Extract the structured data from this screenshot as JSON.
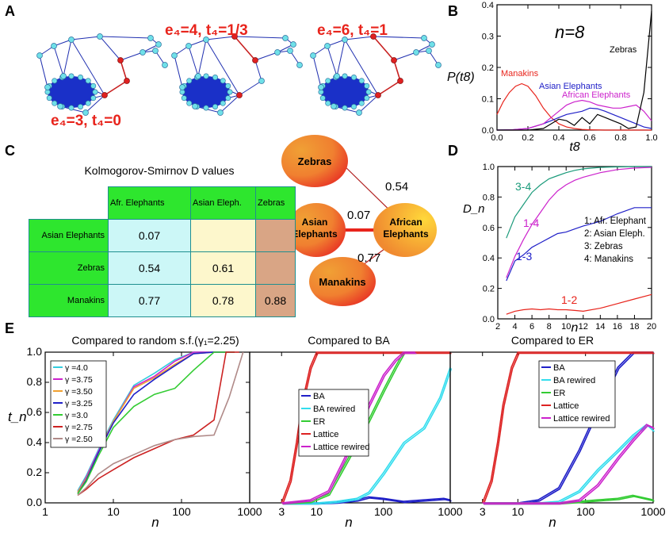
{
  "panel_labels": {
    "a": "A",
    "b": "B",
    "c": "C",
    "d": "D",
    "e": "E"
  },
  "panel_a": {
    "label_1": "e₄=3,  t₄=0",
    "label_2": "e₄=4,  t₄=1/3",
    "label_3": "e₄=6,  t₄=1"
  },
  "panel_c": {
    "title": "Kolmogorov-Smirnov D values",
    "columns": [
      "Afr. Elephants",
      "Asian Eleph.",
      "Zebras"
    ],
    "rows": [
      {
        "name": "Asian Elephants",
        "values": [
          "0.07",
          "",
          ""
        ]
      },
      {
        "name": "Zebras",
        "values": [
          "0.54",
          "0.61",
          ""
        ]
      },
      {
        "name": "Manakins",
        "values": [
          "0.77",
          "0.78",
          "0.88"
        ]
      }
    ],
    "cell_colors": {
      "col1": "#ccf7f7",
      "col2": "#fdf7cc",
      "col3": "#d9a585"
    },
    "graph": {
      "nodes": [
        "Zebras",
        "Asian Elephants",
        "African Elephants",
        "Manakins"
      ],
      "edges": [
        {
          "from": "Zebras",
          "to": "African Elephants",
          "label": "0.54"
        },
        {
          "from": "Asian Elephants",
          "to": "African Elephants",
          "label": "0.07"
        },
        {
          "from": "Manakins",
          "to": "African Elephants",
          "label": "0.77"
        }
      ]
    }
  },
  "chart_data": [
    {
      "id": "B",
      "type": "line",
      "title": "n=8",
      "xlabel": "t8",
      "ylabel": "P(t8)",
      "xlim": [
        0,
        1
      ],
      "ylim": [
        0,
        0.4
      ],
      "xticks": [
        "0.0",
        "0.2",
        "0.4",
        "0.6",
        "0.8",
        "1.0"
      ],
      "yticks": [
        "0.0",
        "0.1",
        "0.2",
        "0.3",
        "0.4"
      ],
      "series": [
        {
          "name": "Manakins",
          "color": "#e8241c",
          "x": [
            0,
            0.04,
            0.08,
            0.12,
            0.16,
            0.2,
            0.25,
            0.3,
            0.35,
            0.4,
            0.45,
            0.5,
            0.55,
            0.6,
            0.7,
            0.8,
            1.0
          ],
          "y": [
            0.05,
            0.09,
            0.12,
            0.14,
            0.148,
            0.14,
            0.11,
            0.07,
            0.04,
            0.02,
            0.01,
            0.005,
            0.002,
            0.001,
            0,
            0,
            0
          ]
        },
        {
          "name": "Asian Elephants",
          "color": "#2020c8",
          "x": [
            0,
            0.1,
            0.2,
            0.3,
            0.35,
            0.4,
            0.45,
            0.5,
            0.55,
            0.6,
            0.65,
            0.7,
            0.75,
            0.8,
            0.85,
            0.9,
            0.95,
            1.0
          ],
          "y": [
            0,
            0.001,
            0.005,
            0.02,
            0.03,
            0.04,
            0.05,
            0.055,
            0.06,
            0.07,
            0.068,
            0.06,
            0.05,
            0.04,
            0.03,
            0.02,
            0.01,
            0.005
          ]
        },
        {
          "name": "African Elephants",
          "color": "#cc22cc",
          "x": [
            0,
            0.1,
            0.2,
            0.3,
            0.35,
            0.4,
            0.45,
            0.5,
            0.55,
            0.6,
            0.65,
            0.7,
            0.75,
            0.8,
            0.85,
            0.9,
            0.95,
            1.0
          ],
          "y": [
            0,
            0.001,
            0.005,
            0.02,
            0.04,
            0.06,
            0.08,
            0.09,
            0.095,
            0.09,
            0.08,
            0.075,
            0.07,
            0.07,
            0.075,
            0.08,
            0.06,
            0.03
          ]
        },
        {
          "name": "Zebras",
          "color": "#000000",
          "x": [
            0,
            0.2,
            0.3,
            0.35,
            0.4,
            0.45,
            0.5,
            0.55,
            0.6,
            0.65,
            0.7,
            0.75,
            0.8,
            0.85,
            0.9,
            0.95,
            1.0
          ],
          "y": [
            0,
            0,
            0.005,
            0.02,
            0.035,
            0.03,
            0.015,
            0.04,
            0.02,
            0.05,
            0.04,
            0.03,
            0.02,
            0.005,
            0.01,
            0.12,
            0.38
          ]
        }
      ]
    },
    {
      "id": "D",
      "type": "line",
      "xlabel": "n",
      "ylabel": "D_n",
      "xlim": [
        2,
        20
      ],
      "ylim": [
        0,
        1
      ],
      "xticks": [
        "2",
        "4",
        "6",
        "8",
        "10",
        "12",
        "14",
        "16",
        "18",
        "20"
      ],
      "yticks": [
        "0.0",
        "0.2",
        "0.4",
        "0.6",
        "0.8",
        "1.0"
      ],
      "legend_lines": [
        "1: Afr. Elephant",
        "2: Asian Eleph.",
        "3: Zebras",
        "4: Manakins"
      ],
      "series": [
        {
          "name": "3-4",
          "color": "#1a9a7a",
          "x": [
            3,
            4,
            5,
            6,
            7,
            8,
            9,
            10,
            11,
            12,
            14,
            16,
            18,
            20
          ],
          "y": [
            0.53,
            0.67,
            0.75,
            0.83,
            0.88,
            0.92,
            0.94,
            0.96,
            0.975,
            0.985,
            0.995,
            0.998,
            1,
            1
          ]
        },
        {
          "name": "1-4",
          "color": "#cc22cc",
          "x": [
            3,
            4,
            5,
            6,
            7,
            8,
            9,
            10,
            11,
            12,
            14,
            16,
            18,
            20
          ],
          "y": [
            0.27,
            0.41,
            0.52,
            0.62,
            0.7,
            0.78,
            0.84,
            0.88,
            0.91,
            0.93,
            0.96,
            0.98,
            0.99,
            0.995
          ]
        },
        {
          "name": "1-3",
          "color": "#2020c8",
          "x": [
            3,
            4,
            5,
            6,
            7,
            8,
            9,
            10,
            11,
            12,
            14,
            16,
            18,
            20
          ],
          "y": [
            0.25,
            0.38,
            0.42,
            0.47,
            0.5,
            0.53,
            0.56,
            0.57,
            0.59,
            0.61,
            0.64,
            0.69,
            0.73,
            0.73
          ]
        },
        {
          "name": "1-2",
          "color": "#e8241c",
          "x": [
            3,
            4,
            5,
            6,
            7,
            8,
            9,
            10,
            11,
            12,
            14,
            16,
            18,
            20
          ],
          "y": [
            0.03,
            0.05,
            0.06,
            0.065,
            0.06,
            0.065,
            0.06,
            0.06,
            0.055,
            0.05,
            0.07,
            0.1,
            0.13,
            0.16
          ]
        }
      ]
    },
    {
      "id": "E1",
      "type": "line",
      "title": "Compared to random s.f.(γ₁=2.25)",
      "xlabel": "n",
      "ylabel": "t_n",
      "xscale": "log",
      "xlim": [
        1,
        1000
      ],
      "ylim": [
        0,
        1
      ],
      "xticks": [
        "1",
        "10",
        "100",
        "1000"
      ],
      "yticks": [
        "0.0",
        "0.2",
        "0.4",
        "0.6",
        "0.8",
        "1.0"
      ],
      "series": [
        {
          "name": "γ =4.0",
          "color": "#33ccdd",
          "x": [
            3,
            4,
            6,
            10,
            20,
            40,
            80,
            150,
            300,
            600
          ],
          "y": [
            0.08,
            0.18,
            0.35,
            0.55,
            0.78,
            0.86,
            0.95,
            1,
            1,
            1
          ]
        },
        {
          "name": "γ =3.75",
          "color": "#cc22cc",
          "x": [
            3,
            4,
            6,
            10,
            20,
            40,
            80,
            150,
            300,
            600
          ],
          "y": [
            0.07,
            0.17,
            0.34,
            0.54,
            0.77,
            0.84,
            0.94,
            1,
            1,
            1
          ]
        },
        {
          "name": "γ =3.50",
          "color": "#f0a030",
          "x": [
            3,
            4,
            6,
            10,
            20,
            40,
            80,
            150,
            300,
            600
          ],
          "y": [
            0.07,
            0.16,
            0.33,
            0.54,
            0.76,
            0.83,
            0.92,
            0.99,
            1,
            1
          ]
        },
        {
          "name": "γ =3.25",
          "color": "#2020c8",
          "x": [
            3,
            4,
            6,
            10,
            20,
            40,
            80,
            150,
            300,
            600
          ],
          "y": [
            0.06,
            0.15,
            0.33,
            0.53,
            0.72,
            0.82,
            0.91,
            0.99,
            1,
            1
          ]
        },
        {
          "name": "γ =3.0",
          "color": "#33cc33",
          "x": [
            3,
            4,
            6,
            10,
            20,
            40,
            80,
            150,
            300,
            600
          ],
          "y": [
            0.06,
            0.14,
            0.31,
            0.5,
            0.64,
            0.72,
            0.76,
            0.88,
            1,
            1
          ]
        },
        {
          "name": "γ =2.75",
          "color": "#cc2222",
          "x": [
            3,
            4,
            6,
            10,
            20,
            40,
            80,
            150,
            300,
            450,
            700
          ],
          "y": [
            0.05,
            0.09,
            0.16,
            0.22,
            0.3,
            0.36,
            0.42,
            0.45,
            0.55,
            1,
            1
          ]
        },
        {
          "name": "γ =2.50",
          "color": "#b08a88",
          "x": [
            3,
            4,
            6,
            10,
            20,
            40,
            80,
            150,
            300,
            500,
            800
          ],
          "y": [
            0.05,
            0.1,
            0.19,
            0.26,
            0.32,
            0.38,
            0.42,
            0.44,
            0.45,
            0.7,
            1
          ]
        }
      ]
    },
    {
      "id": "E2",
      "type": "line",
      "title": "Compared to BA",
      "xlabel": "n",
      "xscale": "log",
      "xlim": [
        1,
        1000
      ],
      "ylim": [
        0,
        1
      ],
      "xticks": [
        "3",
        "10",
        "100",
        "1000"
      ],
      "series": [
        {
          "name": "BA",
          "color": "#2020c8",
          "x": [
            3,
            10,
            20,
            40,
            60,
            100,
            200,
            400,
            800,
            1000
          ],
          "y": [
            0,
            0,
            0.005,
            0.02,
            0.04,
            0.03,
            0.01,
            0.02,
            0.03,
            0.02
          ]
        },
        {
          "name": "BA rewired",
          "color": "#33ddee",
          "x": [
            3,
            10,
            20,
            40,
            60,
            100,
            200,
            400,
            700,
            1000
          ],
          "y": [
            0,
            0,
            0.01,
            0.03,
            0.07,
            0.2,
            0.4,
            0.5,
            0.7,
            0.9
          ]
        },
        {
          "name": "ER",
          "color": "#33cc33",
          "x": [
            3,
            8,
            15,
            30,
            60,
            100,
            150,
            200,
            300
          ],
          "y": [
            0,
            0.01,
            0.06,
            0.3,
            0.55,
            0.75,
            0.9,
            1,
            1
          ]
        },
        {
          "name": "Lattice",
          "color": "#dd2222",
          "x": [
            3,
            4,
            5,
            6,
            8,
            10,
            12,
            1000
          ],
          "y": [
            0,
            0.15,
            0.4,
            0.65,
            0.9,
            1,
            1,
            1
          ]
        },
        {
          "name": "Lattice rewired",
          "color": "#cc22cc",
          "x": [
            3,
            8,
            15,
            30,
            60,
            100,
            150,
            200,
            300
          ],
          "y": [
            0,
            0.02,
            0.08,
            0.35,
            0.65,
            0.85,
            0.95,
            1,
            1
          ]
        }
      ]
    },
    {
      "id": "E3",
      "type": "line",
      "title": "Compared to ER",
      "xlabel": "n",
      "xscale": "log",
      "xlim": [
        1,
        1000
      ],
      "ylim": [
        0,
        1
      ],
      "xticks": [
        "3",
        "10",
        "100",
        "1000"
      ],
      "series": [
        {
          "name": "BA",
          "color": "#2020c8",
          "x": [
            3,
            10,
            20,
            40,
            80,
            150,
            300,
            500,
            1000
          ],
          "y": [
            0,
            0,
            0.02,
            0.1,
            0.35,
            0.62,
            0.9,
            1,
            1
          ]
        },
        {
          "name": "BA rewired",
          "color": "#33ddee",
          "x": [
            3,
            20,
            40,
            80,
            150,
            300,
            500,
            800,
            1000
          ],
          "y": [
            0,
            0,
            0.01,
            0.08,
            0.22,
            0.35,
            0.45,
            0.52,
            0.48
          ]
        },
        {
          "name": "ER",
          "color": "#33cc33",
          "x": [
            3,
            40,
            80,
            150,
            300,
            500,
            800,
            1000
          ],
          "y": [
            0,
            0,
            0.01,
            0.02,
            0.03,
            0.05,
            0.03,
            0.02
          ]
        },
        {
          "name": "Lattice",
          "color": "#dd2222",
          "x": [
            3,
            4,
            5,
            6,
            8,
            10,
            12,
            1000
          ],
          "y": [
            0,
            0.15,
            0.4,
            0.65,
            0.9,
            1,
            1,
            1
          ]
        },
        {
          "name": "Lattice rewired",
          "color": "#cc22cc",
          "x": [
            3,
            40,
            80,
            150,
            300,
            500,
            800,
            1000
          ],
          "y": [
            0,
            0,
            0.02,
            0.12,
            0.3,
            0.42,
            0.52,
            0.5
          ]
        }
      ]
    }
  ]
}
